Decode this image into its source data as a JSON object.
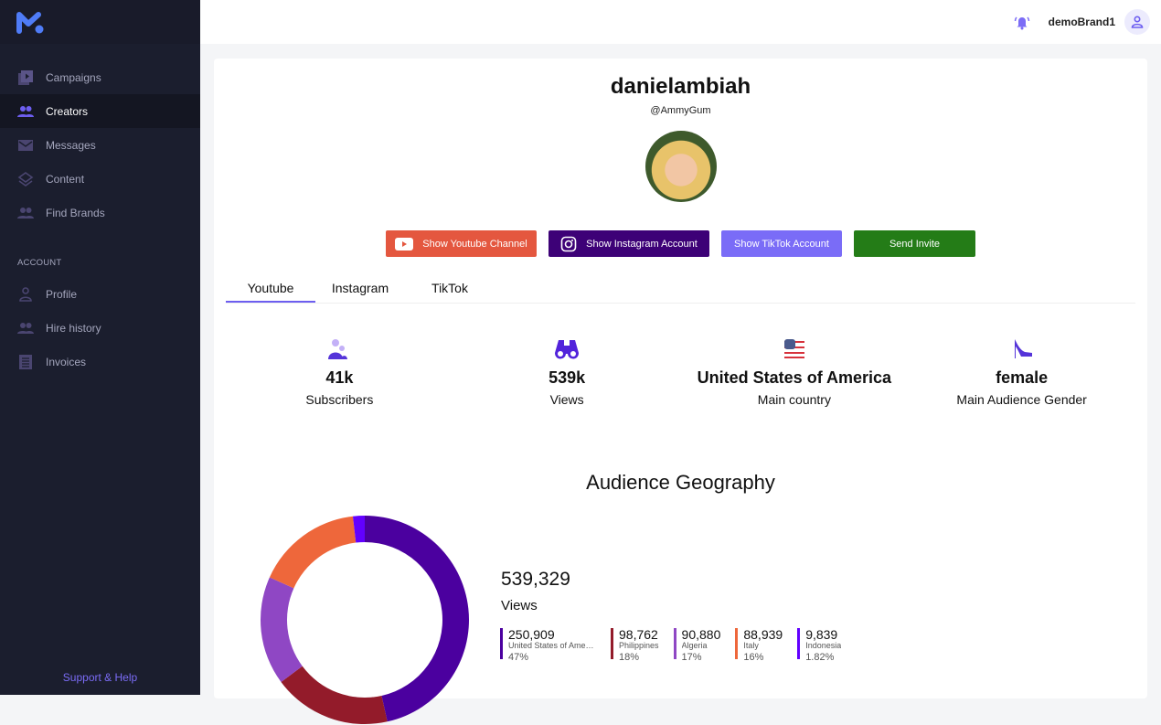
{
  "sidebar": {
    "items": [
      {
        "label": "Campaigns"
      },
      {
        "label": "Creators"
      },
      {
        "label": "Messages"
      },
      {
        "label": "Content"
      },
      {
        "label": "Find Brands"
      }
    ],
    "section": "ACCOUNT",
    "account_items": [
      {
        "label": "Profile"
      },
      {
        "label": "Hire history"
      },
      {
        "label": "Invoices"
      }
    ],
    "support": "Support & Help"
  },
  "header": {
    "username": "demoBrand1"
  },
  "profile": {
    "name": "danielambiah",
    "handle": "@AmmyGum"
  },
  "buttons": {
    "youtube": "Show Youtube Channel",
    "instagram": "Show Instagram Account",
    "tiktok": "Show TikTok Account",
    "invite": "Send Invite"
  },
  "tabs": [
    "Youtube",
    "Instagram",
    "TikTok"
  ],
  "stats": [
    {
      "value": "41k",
      "label": "Subscribers"
    },
    {
      "value": "539k",
      "label": "Views"
    },
    {
      "value": "United States of America",
      "label": "Main country"
    },
    {
      "value": "female",
      "label": "Main Audience Gender"
    }
  ],
  "geography": {
    "title": "Audience Geography",
    "total": "539,329",
    "total_label": "Views"
  },
  "chart_data": {
    "type": "pie",
    "title": "Audience Geography",
    "categories": [
      "United States of America",
      "Philippines",
      "Algeria",
      "Italy",
      "Indonesia"
    ],
    "values": [
      250909,
      98762,
      90880,
      88939,
      9839
    ],
    "percents": [
      "47%",
      "18%",
      "17%",
      "16%",
      "1.82%"
    ],
    "values_text": [
      "250,909",
      "98,762",
      "90,880",
      "88,939",
      "9,839"
    ],
    "colors": [
      "#4b009f",
      "#931b2a",
      "#8f47c4",
      "#ee673b",
      "#6200ff"
    ]
  }
}
